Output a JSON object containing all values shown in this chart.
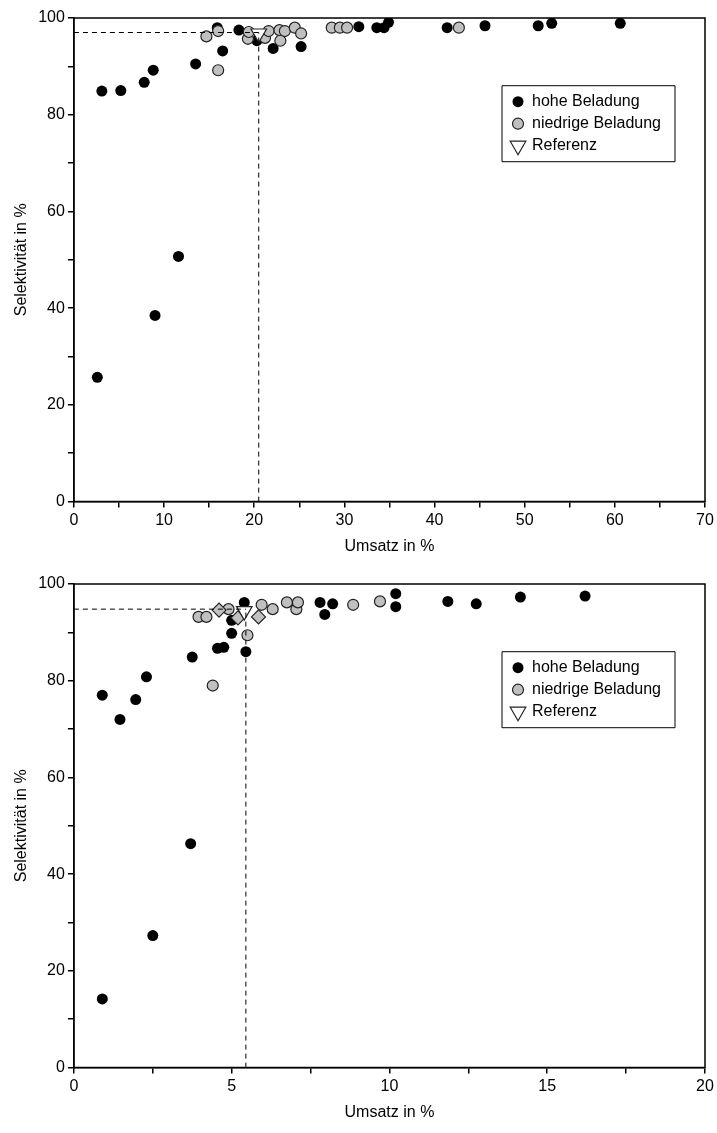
{
  "chart_data": [
    {
      "type": "scatter",
      "xlabel": "Umsatz in %",
      "ylabel": "Selektivität in %",
      "xlim": [
        0,
        70
      ],
      "ylim": [
        0,
        100
      ],
      "xticks": [
        0,
        {
          "value": 5,
          "label": null
        },
        10,
        {
          "value": 15,
          "label": null
        },
        20,
        {
          "value": 25,
          "label": null
        },
        30,
        {
          "value": 35,
          "label": null
        },
        40,
        {
          "value": 45,
          "label": null
        },
        50,
        {
          "value": 55,
          "label": null
        },
        60,
        {
          "value": 65,
          "label": null
        },
        70
      ],
      "yticks": [
        0,
        {
          "value": 10,
          "label": null
        },
        20,
        {
          "value": 30,
          "label": null
        },
        40,
        {
          "value": 50,
          "label": null
        },
        60,
        {
          "value": 70,
          "label": null
        },
        80,
        {
          "value": 90,
          "label": null
        },
        100
      ],
      "legend": "top right",
      "grid": false,
      "ref_lines": [
        {
          "axis": "y",
          "value": 97,
          "color": "#000000",
          "line_style": "dashed"
        },
        {
          "axis": "x",
          "value": 20.5,
          "color": "#000000",
          "line_style": "dashed"
        }
      ],
      "series": [
        {
          "name": "hohe Beladung",
          "color": "#000000",
          "marker": "circle",
          "x": [
            2.6,
            3.1,
            5.2,
            7.8,
            8.8,
            9.0,
            11.6,
            13.5,
            15.9,
            16.5,
            18.3,
            20.3,
            22.1,
            25.2,
            31.6,
            33.6,
            34.4,
            34.9,
            41.4,
            45.6,
            51.5,
            53.0,
            60.6
          ],
          "values": [
            25.7,
            84.9,
            85,
            86.7,
            89.2,
            38.5,
            50.7,
            90.5,
            98.0,
            93.2,
            97.5,
            95.3,
            93.7,
            94.1,
            98.2,
            98.0,
            98.0,
            99.1,
            98.0,
            98.4,
            98.4,
            98.9,
            98.9
          ]
        },
        {
          "name": "niedrige Beladung",
          "color": "#c0c0c0",
          "marker": "circle",
          "x": [
            14.7,
            16.0,
            16.0,
            19.3,
            19.4,
            21.2,
            21.6,
            22.8,
            22.9,
            23.4,
            24.5,
            25.2,
            28.6,
            29.5,
            30.3,
            42.7
          ],
          "values": [
            96.2,
            97.3,
            89.2,
            95.7,
            97.1,
            95.9,
            97.3,
            97.5,
            95.3,
            97.3,
            98.0,
            96.8,
            98.0,
            98.0,
            98.0,
            98.0
          ]
        },
        {
          "name": "Referenz",
          "color": "#ffffff",
          "marker": "triangle",
          "x": [
            20.5
          ],
          "values": [
            96.8
          ]
        }
      ]
    },
    {
      "type": "scatter",
      "xlabel": "Umsatz in %",
      "ylabel": "Selektivität in %",
      "xlim": [
        0,
        20
      ],
      "ylim": [
        0,
        100
      ],
      "xticks": [
        0,
        {
          "value": 2.5,
          "label": null
        },
        5,
        {
          "value": 7.5,
          "label": null
        },
        10,
        {
          "value": 12.5,
          "label": null
        },
        15,
        {
          "value": 17.5,
          "label": null
        },
        20
      ],
      "yticks": [
        0,
        {
          "value": 10,
          "label": null
        },
        20,
        {
          "value": 30,
          "label": null
        },
        40,
        {
          "value": 50,
          "label": null
        },
        60,
        {
          "value": 70,
          "label": null
        },
        80,
        {
          "value": 90,
          "label": null
        },
        100
      ],
      "legend": "top right",
      "grid": false,
      "ref_lines": [
        {
          "axis": "y",
          "value": 94.8,
          "color": "#000000",
          "line_style": "dashed"
        },
        {
          "axis": "x",
          "value": 5.45,
          "color": "#000000",
          "line_style": "dashed"
        }
      ],
      "series": [
        {
          "name": "hohe Beladung",
          "color": "#000000",
          "marker": "circle",
          "x": [
            0.9,
            0.9,
            1.46,
            1.96,
            2.3,
            2.5,
            3.7,
            3.75,
            4.55,
            4.75,
            5.0,
            5.0,
            5.45,
            5.4,
            7.8,
            7.95,
            8.2,
            10.2,
            10.2,
            11.85,
            12.75,
            14.15,
            16.2
          ],
          "values": [
            14.2,
            77.0,
            72.0,
            76.1,
            80.8,
            27.3,
            46.3,
            84.9,
            86.7,
            86.9,
            89.8,
            92.5,
            86.0,
            96.2,
            96.2,
            93.7,
            95.9,
            98.0,
            95.3,
            96.4,
            95.9,
            97.3,
            97.5
          ]
        },
        {
          "name": "niedrige Beladung",
          "color": "#c0c0c0",
          "marker": "circle",
          "x": [
            3.95,
            4.2,
            4.4,
            4.9,
            5.5,
            5.95,
            6.3,
            6.75,
            7.05,
            7.1,
            8.85,
            9.7
          ],
          "values": [
            93.2,
            93.2,
            79.0,
            94.8,
            89.4,
            95.7,
            94.8,
            96.2,
            94.8,
            96.2,
            95.7,
            96.4
          ]
        },
        {
          "color": "#c0c0c0",
          "marker": "diamond",
          "x": [
            4.6,
            5.2,
            5.85
          ],
          "values": [
            94.6,
            93.0,
            93.2
          ]
        },
        {
          "name": "Referenz",
          "color": "#ffffff",
          "marker": "triangle",
          "x": [
            5.4
          ],
          "values": [
            94.4
          ]
        }
      ]
    }
  ]
}
